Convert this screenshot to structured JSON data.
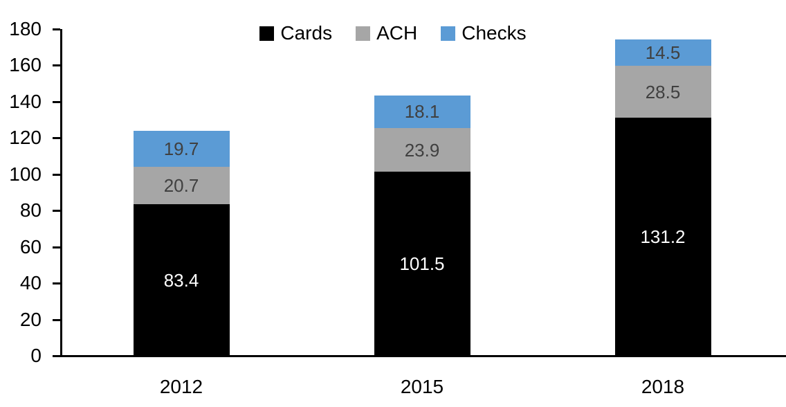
{
  "chart_data": {
    "type": "bar",
    "stacked": true,
    "title": "",
    "categories": [
      "2012",
      "2015",
      "2018"
    ],
    "series": [
      {
        "name": "Cards",
        "color": "#000000",
        "label_color": "#FFFFFF",
        "values": [
          83.4,
          101.5,
          131.2
        ]
      },
      {
        "name": "ACH",
        "color": "#A6A6A6",
        "label_color": "#404040",
        "values": [
          20.7,
          23.9,
          28.5
        ]
      },
      {
        "name": "Checks",
        "color": "#5B9BD5",
        "label_color": "#404040",
        "values": [
          19.7,
          18.1,
          14.5
        ]
      }
    ],
    "value_labels_shown": true,
    "xlabel": "",
    "ylabel": "",
    "ylim": [
      0,
      180
    ],
    "yticks": [
      0,
      20,
      40,
      60,
      80,
      100,
      120,
      140,
      160,
      180
    ],
    "legend_position": "top",
    "legend_order": [
      "Cards",
      "ACH",
      "Checks"
    ],
    "grid": false,
    "axis_color": "#000000",
    "background_color": "#FFFFFF"
  }
}
